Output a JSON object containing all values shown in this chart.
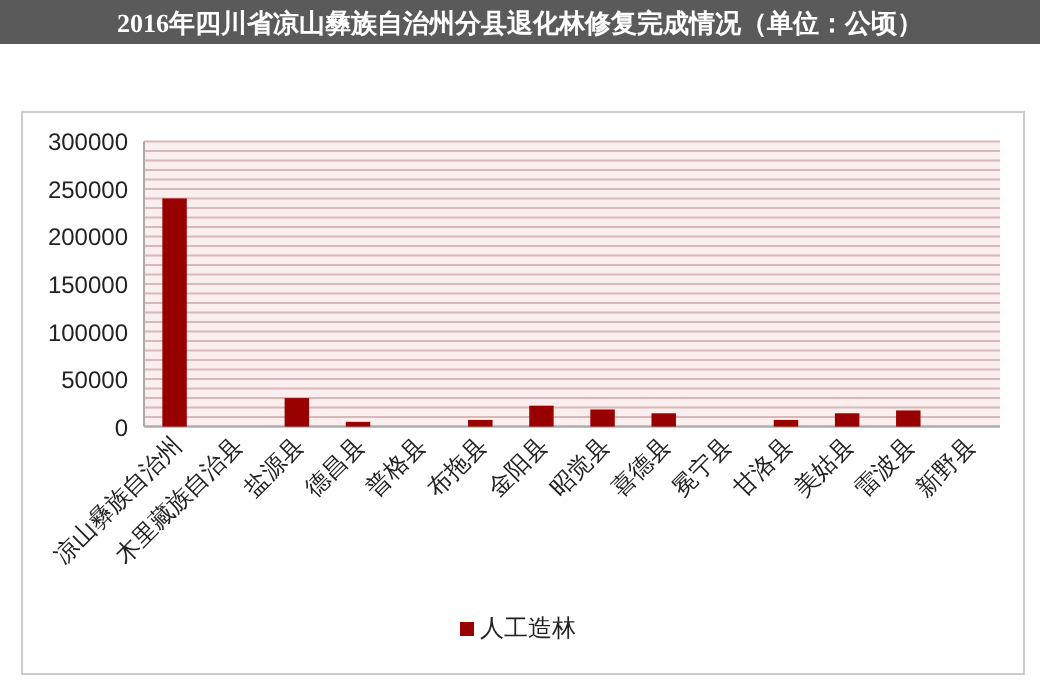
{
  "chart_data": {
    "type": "bar",
    "title": "2016年四川省凉山彝族自治州分县退化林修复完成情况（单位：公顷）",
    "categories": [
      "凉山彝族自治州",
      "木里藏族自治县",
      "盐源县",
      "德昌县",
      "普格县",
      "布拖县",
      "金阳县",
      "昭觉县",
      "喜德县",
      "冕宁县",
      "甘洛县",
      "美姑县",
      "雷波县",
      "新野县"
    ],
    "series": [
      {
        "name": "人工造林",
        "color": "#990000",
        "values": [
          240000,
          0,
          30000,
          5000,
          0,
          7000,
          22000,
          18000,
          14000,
          0,
          7000,
          14000,
          17000,
          0
        ]
      }
    ],
    "ylim": [
      0,
      300000
    ],
    "yticks": [
      0,
      {
        "value": 10000,
        "label": null
      },
      {
        "value": 20000,
        "label": null
      },
      {
        "value": 30000,
        "label": null
      },
      {
        "value": 40000,
        "label": null
      },
      50000,
      {
        "value": 60000,
        "label": null
      },
      {
        "value": 70000,
        "label": null
      },
      {
        "value": 80000,
        "label": null
      },
      {
        "value": 90000,
        "label": null
      },
      100000,
      {
        "value": 110000,
        "label": null
      },
      {
        "value": 120000,
        "label": null
      },
      {
        "value": 130000,
        "label": null
      },
      {
        "value": 140000,
        "label": null
      },
      150000,
      {
        "value": 160000,
        "label": null
      },
      {
        "value": 170000,
        "label": null
      },
      {
        "value": 180000,
        "label": null
      },
      {
        "value": 190000,
        "label": null
      },
      200000,
      {
        "value": 210000,
        "label": null
      },
      {
        "value": 220000,
        "label": null
      },
      {
        "value": 230000,
        "label": null
      },
      {
        "value": 240000,
        "label": null
      },
      250000,
      {
        "value": 260000,
        "label": null
      },
      {
        "value": 270000,
        "label": null
      },
      {
        "value": 280000,
        "label": null
      },
      {
        "value": 290000,
        "label": null
      },
      300000
    ],
    "grid": "y",
    "legend": "bottom"
  }
}
